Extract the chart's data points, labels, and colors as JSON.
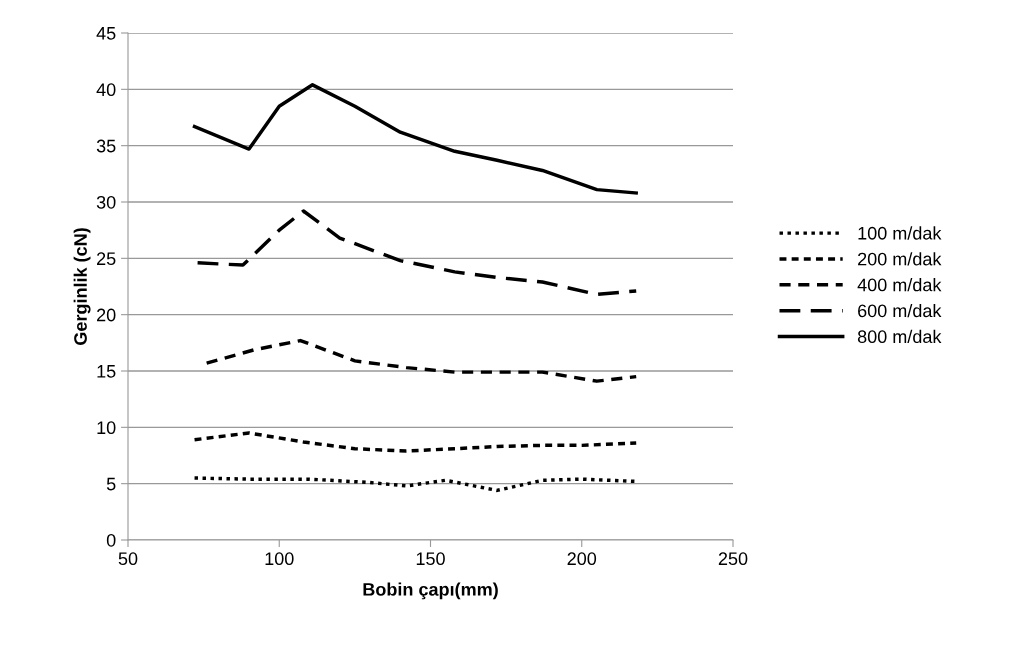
{
  "chart_data": {
    "type": "line",
    "xlabel": "Bobin çapı(mm)",
    "ylabel": "Gerginlik (cN)",
    "xlim": [
      50,
      250
    ],
    "xticks": [
      50,
      100,
      150,
      200,
      250
    ],
    "ylim": [
      0,
      45
    ],
    "yticks": [
      0,
      5,
      10,
      15,
      20,
      25,
      30,
      35,
      40,
      45
    ],
    "grid": "y",
    "legend": "right",
    "marker": "none",
    "series": [
      {
        "name": "100 m/dak",
        "color": "#000000",
        "line_style": "dotted",
        "x": [
          72,
          90,
          110,
          130,
          142,
          155,
          172,
          187,
          200,
          218
        ],
        "values": [
          5.5,
          5.4,
          5.4,
          5.1,
          4.8,
          5.3,
          4.4,
          5.3,
          5.4,
          5.2
        ]
      },
      {
        "name": "200 m/dak",
        "color": "#000000",
        "line_style": "dashed",
        "x": [
          72,
          90,
          108,
          125,
          142,
          158,
          172,
          187,
          200,
          218
        ],
        "values": [
          8.9,
          9.5,
          8.7,
          8.1,
          7.9,
          8.1,
          8.3,
          8.4,
          8.4,
          8.6
        ]
      },
      {
        "name": "400 m/dak",
        "color": "#000000",
        "line_style": "dashed",
        "x": [
          76,
          92,
          107,
          125,
          142,
          158,
          172,
          187,
          205,
          218
        ],
        "values": [
          15.7,
          16.9,
          17.7,
          15.9,
          15.3,
          14.9,
          14.9,
          14.9,
          14.1,
          14.5
        ]
      },
      {
        "name": "600 m/dak",
        "color": "#000000",
        "line_style": "dashed",
        "x": [
          73,
          88,
          100,
          108,
          120,
          140,
          158,
          172,
          187,
          205,
          218
        ],
        "values": [
          24.6,
          24.4,
          27.5,
          29.2,
          26.8,
          24.8,
          23.8,
          23.3,
          22.9,
          21.8,
          22.1
        ]
      },
      {
        "name": "800 m/dak",
        "color": "#000000",
        "line_style": "solid",
        "x": [
          72,
          90,
          100,
          111,
          125,
          140,
          158,
          172,
          187,
          205,
          218
        ],
        "values": [
          36.7,
          34.7,
          38.5,
          40.4,
          38.5,
          36.2,
          34.5,
          33.7,
          32.8,
          31.1,
          30.8
        ]
      }
    ]
  }
}
